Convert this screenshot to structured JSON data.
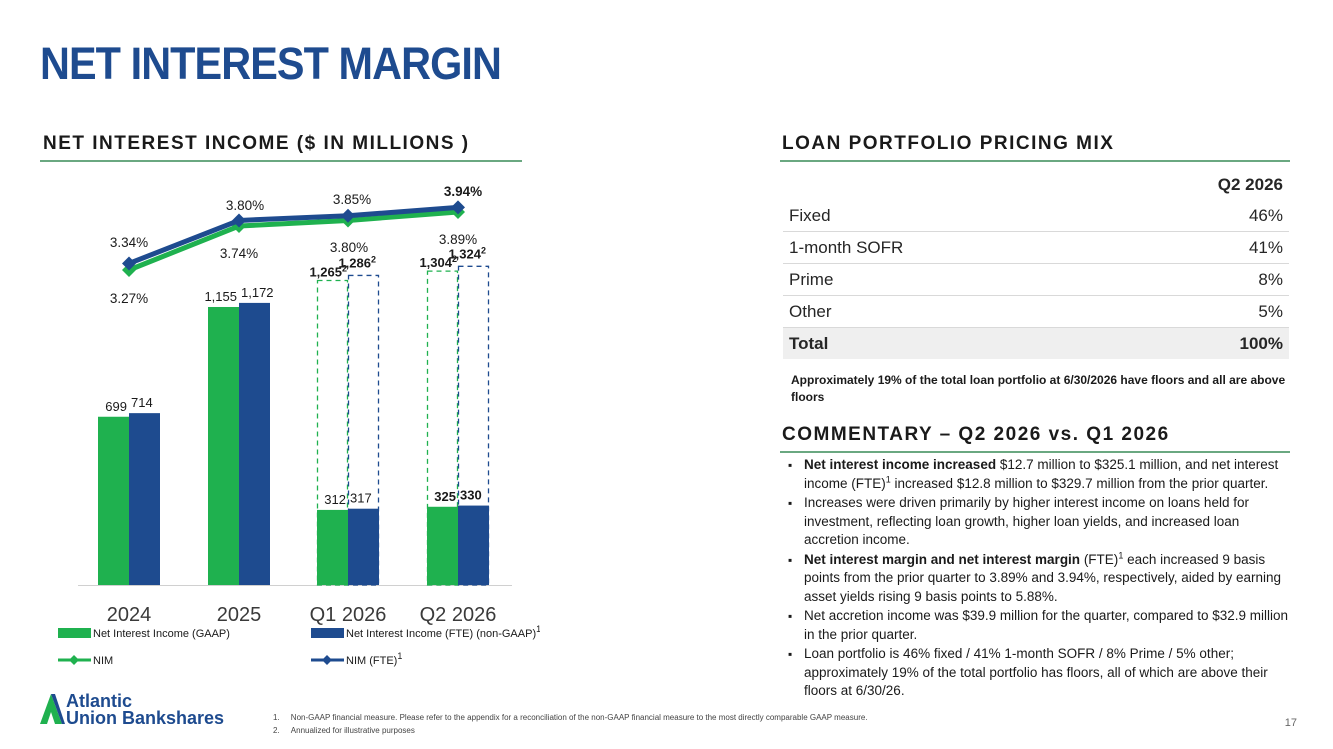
{
  "page": {
    "title": "NET INTEREST MARGIN",
    "page_number": "17",
    "logo_line1": "Atlantic",
    "logo_line2": "Union Bankshares",
    "footnotes": [
      "1.     Non-GAAP financial measure. Please refer to the appendix for a reconciliation of the non-GAAP financial measure to the most directly comparable GAAP measure.",
      "2.     Annualized for illustrative purposes"
    ]
  },
  "nii_section": {
    "title": "NET INTEREST INCOME ($ IN MILLIONS )"
  },
  "chart_data": {
    "type": "bar",
    "categories": [
      "2024",
      "2025",
      "Q1 2026",
      "Q2 2026"
    ],
    "series": [
      {
        "name": "Net Interest Income (GAAP)",
        "values": [
          699,
          1155,
          312,
          325
        ],
        "labels": [
          "699",
          "1,155",
          "312",
          "325"
        ],
        "color": "#1fb14f"
      },
      {
        "name": "Net Interest Income (FTE) (non-GAAP)",
        "values": [
          714,
          1172,
          317,
          330
        ],
        "labels": [
          "714",
          "1,172",
          "317",
          "330"
        ],
        "color": "#1e4b8f",
        "superscript": "1"
      }
    ],
    "annualized": {
      "gaap": [
        null,
        null,
        1265,
        1304
      ],
      "fte": [
        null,
        null,
        1286,
        1324
      ],
      "gaap_labels": [
        null,
        null,
        "1,265",
        "1,304"
      ],
      "fte_labels": [
        null,
        null,
        "1,286",
        "1,324"
      ],
      "superscript": "2"
    },
    "lines": [
      {
        "name": "NIM",
        "values": [
          3.27,
          3.74,
          3.8,
          3.89
        ],
        "labels": [
          "3.27%",
          "3.74%",
          "3.80%",
          "3.89%"
        ],
        "color": "#1fb14f"
      },
      {
        "name": "NIM (FTE)",
        "values": [
          3.34,
          3.8,
          3.85,
          3.94
        ],
        "labels": [
          "3.34%",
          "3.80%",
          "3.85%",
          "3.94%"
        ],
        "color": "#1e4b8f",
        "superscript": "1"
      }
    ],
    "legend_position": "bottom",
    "grid": false
  },
  "pricing": {
    "title": "LOAN PORTFOLIO PRICING MIX",
    "column_header": "Q2 2026",
    "rows": [
      {
        "label": "Fixed",
        "value": "46%"
      },
      {
        "label": "1-month SOFR",
        "value": "41%"
      },
      {
        "label": "Prime",
        "value": "8%"
      },
      {
        "label": "Other",
        "value": "5%"
      }
    ],
    "total": {
      "label": "Total",
      "value": "100%"
    },
    "note": "Approximately 19% of the total loan portfolio at 6/30/2026 have floors and all are above floors"
  },
  "commentary": {
    "title": "COMMENTARY – Q2 2026 vs. Q1 2026",
    "bullets": [
      {
        "bold": "Net interest income increased",
        "text_a": " $12.7 million to $325.1 million, and net interest income (FTE)",
        "sup": "1",
        "text_b": " increased $12.8 million to $329.7 million from the prior quarter."
      },
      {
        "bold": "",
        "text_a": "Increases were driven primarily by higher interest income on loans held for investment, reflecting loan growth, higher loan yields, and increased loan accretion income.",
        "sup": "",
        "text_b": ""
      },
      {
        "bold": "Net interest margin and net interest margin",
        "text_a": " (FTE)",
        "sup": "1",
        "text_b": " each increased 9 basis points from the prior quarter to 3.89% and 3.94%, respectively, aided by earning asset yields rising 9 basis points to 5.88%."
      },
      {
        "bold": "",
        "text_a": "Net accretion income was $39.9 million for the quarter, compared to $32.9 million in the prior quarter.",
        "sup": "",
        "text_b": ""
      },
      {
        "bold": "",
        "text_a": "Loan portfolio is 46% fixed / 41% 1-month SOFR / 8% Prime / 5% other; approximately 19% of the total portfolio has floors, all of which are above their floors at 6/30/26.",
        "sup": "",
        "text_b": ""
      }
    ]
  }
}
